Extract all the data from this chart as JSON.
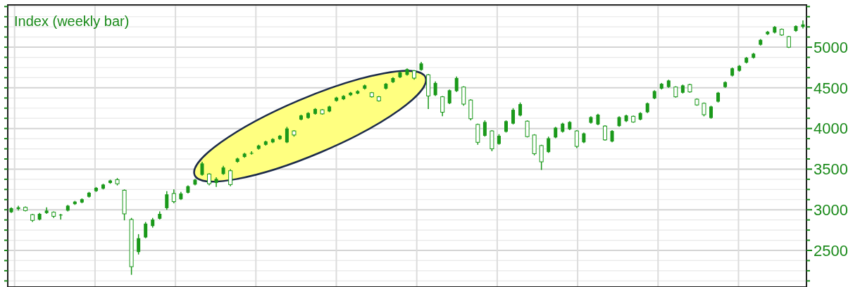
{
  "chart_data": {
    "type": "candlestick",
    "title": "Index (weekly bar)",
    "categories": [
      null,
      null,
      null,
      null,
      null,
      null,
      null,
      null,
      null,
      null,
      null,
      null,
      null,
      null,
      null,
      null,
      null,
      null,
      null,
      null,
      null,
      null,
      null,
      null,
      null,
      null,
      null,
      null,
      null,
      null,
      null,
      null,
      null,
      null,
      null,
      null,
      null,
      null,
      null,
      null,
      null,
      null,
      null,
      null,
      null,
      null,
      null,
      null,
      null,
      null,
      null,
      null,
      null,
      null,
      null,
      null,
      null,
      null,
      null,
      null,
      null,
      null,
      null,
      null,
      null,
      null,
      null,
      null,
      null,
      null,
      null,
      null,
      null,
      null,
      null,
      null,
      null,
      null,
      null,
      null,
      null,
      null,
      null,
      null,
      null,
      null,
      null,
      null,
      null,
      null,
      null,
      null,
      null,
      null,
      null,
      null,
      null,
      null,
      null,
      null,
      null,
      null,
      null,
      null,
      null,
      null,
      null,
      null,
      null,
      null,
      null,
      null,
      null
    ],
    "series": [
      {
        "color": "#1a991a",
        "ohlc": [
          [
            2970,
            3030,
            2960,
            3020
          ],
          [
            3010,
            3050,
            2990,
            3030
          ],
          [
            3030,
            3040,
            2980,
            2990
          ],
          [
            2940,
            2950,
            2850,
            2870
          ],
          [
            2880,
            2960,
            2870,
            2950
          ],
          [
            2960,
            3030,
            2950,
            2990
          ],
          [
            2970,
            2980,
            2900,
            2920
          ],
          [
            2930,
            2950,
            2880,
            2940
          ],
          [
            2990,
            3060,
            2980,
            3050
          ],
          [
            3070,
            3110,
            3060,
            3100
          ],
          [
            3090,
            3140,
            3080,
            3130
          ],
          [
            3160,
            3220,
            3150,
            3210
          ],
          [
            3230,
            3280,
            3220,
            3270
          ],
          [
            3260,
            3320,
            3250,
            3310
          ],
          [
            3330,
            3370,
            3320,
            3360
          ],
          [
            3370,
            3390,
            3300,
            3320
          ],
          [
            3240,
            3250,
            2870,
            2950
          ],
          [
            2880,
            2900,
            2200,
            2300
          ],
          [
            2480,
            2700,
            2450,
            2650
          ],
          [
            2660,
            2850,
            2650,
            2830
          ],
          [
            2800,
            2900,
            2780,
            2880
          ],
          [
            2890,
            2980,
            2880,
            2950
          ],
          [
            3020,
            3230,
            3000,
            3190
          ],
          [
            3200,
            3250,
            3080,
            3100
          ],
          [
            3130,
            3220,
            3120,
            3200
          ],
          [
            3210,
            3300,
            3200,
            3290
          ],
          [
            3310,
            3380,
            3300,
            3370
          ],
          [
            3430,
            3590,
            3420,
            3570
          ],
          [
            3440,
            3450,
            3300,
            3320
          ],
          [
            3330,
            3400,
            3280,
            3380
          ],
          [
            3440,
            3540,
            3430,
            3520
          ],
          [
            3480,
            3500,
            3290,
            3310
          ],
          [
            3590,
            3640,
            3580,
            3630
          ],
          [
            3650,
            3700,
            3640,
            3690
          ],
          [
            3690,
            3720,
            3680,
            3700
          ],
          [
            3750,
            3800,
            3740,
            3790
          ],
          [
            3800,
            3850,
            3790,
            3840
          ],
          [
            3830,
            3880,
            3820,
            3870
          ],
          [
            3870,
            3920,
            3860,
            3910
          ],
          [
            3830,
            4020,
            3820,
            4000
          ],
          [
            3970,
            3980,
            3900,
            3920
          ],
          [
            4110,
            4170,
            4100,
            4160
          ],
          [
            4130,
            4200,
            4120,
            4190
          ],
          [
            4180,
            4250,
            4170,
            4240
          ],
          [
            4230,
            4240,
            4170,
            4180
          ],
          [
            4210,
            4280,
            4200,
            4270
          ],
          [
            4340,
            4390,
            4330,
            4380
          ],
          [
            4360,
            4410,
            4350,
            4400
          ],
          [
            4410,
            4450,
            4400,
            4440
          ],
          [
            4430,
            4470,
            4420,
            4460
          ],
          [
            4490,
            4540,
            4480,
            4530
          ],
          [
            4440,
            4450,
            4380,
            4390
          ],
          [
            4390,
            4400,
            4330,
            4340
          ],
          [
            4490,
            4560,
            4480,
            4550
          ],
          [
            4570,
            4630,
            4560,
            4620
          ],
          [
            4630,
            4700,
            4620,
            4690
          ],
          [
            4660,
            4740,
            4650,
            4730
          ],
          [
            4710,
            4720,
            4600,
            4620
          ],
          [
            4720,
            4820,
            4710,
            4800
          ],
          [
            4660,
            4670,
            4240,
            4400
          ],
          [
            4410,
            4580,
            4400,
            4560
          ],
          [
            4390,
            4400,
            4150,
            4200
          ],
          [
            4310,
            4480,
            4300,
            4470
          ],
          [
            4460,
            4640,
            4450,
            4620
          ],
          [
            4510,
            4520,
            4280,
            4300
          ],
          [
            4350,
            4360,
            4100,
            4120
          ],
          [
            4050,
            4060,
            3800,
            3830
          ],
          [
            3910,
            4100,
            3900,
            4080
          ],
          [
            3970,
            3980,
            3720,
            3750
          ],
          [
            3810,
            3930,
            3800,
            3910
          ],
          [
            3960,
            4100,
            3950,
            4090
          ],
          [
            4060,
            4250,
            4050,
            4230
          ],
          [
            4160,
            4320,
            4150,
            4300
          ],
          [
            4090,
            4100,
            3890,
            3900
          ],
          [
            3920,
            3930,
            3670,
            3690
          ],
          [
            3790,
            3800,
            3490,
            3590
          ],
          [
            3710,
            3900,
            3700,
            3880
          ],
          [
            3890,
            4020,
            3880,
            4010
          ],
          [
            3960,
            4070,
            3950,
            4060
          ],
          [
            3990,
            4090,
            3980,
            4080
          ],
          [
            3970,
            3980,
            3760,
            3780
          ],
          [
            3830,
            3950,
            3820,
            3940
          ],
          [
            4070,
            4150,
            4060,
            4140
          ],
          [
            4050,
            4180,
            4040,
            4170
          ],
          [
            4030,
            4040,
            3850,
            3860
          ],
          [
            3840,
            3980,
            3830,
            3970
          ],
          [
            4030,
            4150,
            4020,
            4140
          ],
          [
            4090,
            4170,
            4080,
            4160
          ],
          [
            4150,
            4160,
            4070,
            4080
          ],
          [
            4110,
            4200,
            4100,
            4190
          ],
          [
            4200,
            4320,
            4190,
            4310
          ],
          [
            4370,
            4470,
            4360,
            4460
          ],
          [
            4490,
            4560,
            4480,
            4550
          ],
          [
            4510,
            4600,
            4500,
            4590
          ],
          [
            4510,
            4520,
            4380,
            4390
          ],
          [
            4440,
            4540,
            4430,
            4530
          ],
          [
            4540,
            4550,
            4440,
            4450
          ],
          [
            4360,
            4370,
            4280,
            4290
          ],
          [
            4310,
            4320,
            4150,
            4170
          ],
          [
            4130,
            4280,
            4120,
            4270
          ],
          [
            4330,
            4450,
            4320,
            4440
          ],
          [
            4510,
            4580,
            4500,
            4570
          ],
          [
            4650,
            4750,
            4640,
            4740
          ],
          [
            4710,
            4780,
            4700,
            4770
          ],
          [
            4810,
            4880,
            4800,
            4870
          ],
          [
            4870,
            4930,
            4860,
            4920
          ],
          [
            5030,
            5100,
            5020,
            5090
          ],
          [
            5160,
            5200,
            5150,
            5190
          ],
          [
            5180,
            5260,
            5170,
            5250
          ],
          [
            5220,
            5230,
            5140,
            5150
          ],
          [
            5130,
            5140,
            4990,
            5000
          ],
          [
            5200,
            5270,
            5190,
            5260
          ],
          [
            5250,
            5330,
            5230,
            5280
          ]
        ]
      }
    ],
    "ylim": [
      2050,
      5520
    ],
    "yticks": [
      {
        "value": 2125,
        "label": null
      },
      {
        "value": 2250,
        "label": null
      },
      {
        "value": 2375,
        "label": null
      },
      2500,
      {
        "value": 2625,
        "label": null
      },
      {
        "value": 2750,
        "label": null
      },
      {
        "value": 2875,
        "label": null
      },
      3000,
      {
        "value": 3125,
        "label": null
      },
      {
        "value": 3250,
        "label": null
      },
      {
        "value": 3375,
        "label": null
      },
      3500,
      {
        "value": 3625,
        "label": null
      },
      {
        "value": 3750,
        "label": null
      },
      {
        "value": 3875,
        "label": null
      },
      4000,
      {
        "value": 4125,
        "label": null
      },
      {
        "value": 4250,
        "label": null
      },
      {
        "value": 4375,
        "label": null
      },
      4500,
      {
        "value": 4625,
        "label": null
      },
      {
        "value": 4750,
        "label": null
      },
      {
        "value": 4875,
        "label": null
      },
      5000,
      {
        "value": 5125,
        "label": null
      },
      {
        "value": 5250,
        "label": null
      },
      {
        "value": 5375,
        "label": null
      },
      {
        "value": 5500,
        "label": null
      }
    ],
    "grid": true,
    "tick_labels": "y"
  }
}
